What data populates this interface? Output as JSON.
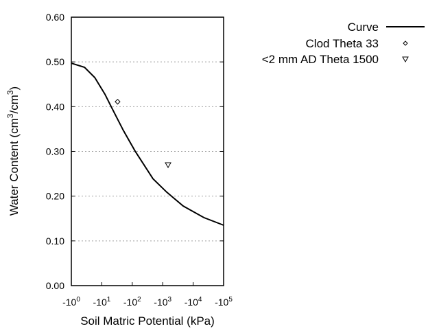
{
  "chart_data": {
    "type": "line",
    "xlabel": "Soil Matric Potential (kPa)",
    "ylabel": "Water Content (cm3/cm3)",
    "x_scale": "log (negative potential)",
    "xlim_log10": [
      0,
      5
    ],
    "x_ticks": [
      {
        "base": "-10",
        "exp": "0"
      },
      {
        "base": "-10",
        "exp": "1"
      },
      {
        "base": "-10",
        "exp": "2"
      },
      {
        "base": "-10",
        "exp": "3"
      },
      {
        "base": "-10",
        "exp": "4"
      },
      {
        "base": "-10",
        "exp": "5"
      }
    ],
    "ylim": [
      0,
      0.6
    ],
    "y_ticks": [
      "0.00",
      "0.10",
      "0.20",
      "0.30",
      "0.40",
      "0.50",
      "0.60"
    ],
    "grid": "horizontal dotted",
    "legend_placement": "top-right outside",
    "series": [
      {
        "name": "Curve",
        "style": "line",
        "color": "#000000",
        "points": [
          [
            1,
            0.497
          ],
          [
            2.7,
            0.488
          ],
          [
            5.9,
            0.465
          ],
          [
            12.6,
            0.428
          ],
          [
            21.4,
            0.397
          ],
          [
            51,
            0.347
          ],
          [
            123,
            0.301
          ],
          [
            479,
            0.239
          ],
          [
            1350,
            0.209
          ],
          [
            4680,
            0.178
          ],
          [
            22400,
            0.152
          ],
          [
            100000,
            0.135
          ]
        ]
      },
      {
        "name": "Clod Theta 33",
        "style": "diamond",
        "points": [
          [
            33,
            0.411
          ]
        ]
      },
      {
        "name": "<2 mm AD Theta 1500",
        "style": "triangle-down",
        "points": [
          [
            1500,
            0.27
          ]
        ]
      }
    ]
  }
}
